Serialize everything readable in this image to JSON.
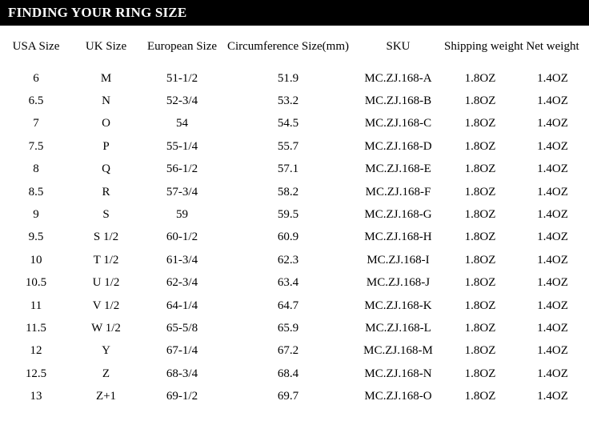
{
  "title_bar": {
    "title": "FINDING YOUR RING SIZE"
  },
  "colors": {
    "title_bar_background": "#000000",
    "title_bar_text": "#ffffff",
    "body_text": "#000000",
    "page_background": "#ffffff"
  },
  "table": {
    "columns": [
      "USA Size",
      "UK Size",
      "European Size",
      "Circumference Size(mm)",
      "SKU",
      "Shipping weight",
      "Net weight"
    ],
    "rows": [
      [
        "6",
        "M",
        "51-1/2",
        "51.9",
        "MC.ZJ.168-A",
        "1.8OZ",
        "1.4OZ"
      ],
      [
        "6.5",
        "N",
        "52-3/4",
        "53.2",
        "MC.ZJ.168-B",
        "1.8OZ",
        "1.4OZ"
      ],
      [
        "7",
        "O",
        "54",
        "54.5",
        "MC.ZJ.168-C",
        "1.8OZ",
        "1.4OZ"
      ],
      [
        "7.5",
        "P",
        "55-1/4",
        "55.7",
        "MC.ZJ.168-D",
        "1.8OZ",
        "1.4OZ"
      ],
      [
        "8",
        "Q",
        "56-1/2",
        "57.1",
        "MC.ZJ.168-E",
        "1.8OZ",
        "1.4OZ"
      ],
      [
        "8.5",
        "R",
        "57-3/4",
        "58.2",
        "MC.ZJ.168-F",
        "1.8OZ",
        "1.4OZ"
      ],
      [
        "9",
        "S",
        "59",
        "59.5",
        "MC.ZJ.168-G",
        "1.8OZ",
        "1.4OZ"
      ],
      [
        "9.5",
        "S 1/2",
        "60-1/2",
        "60.9",
        "MC.ZJ.168-H",
        "1.8OZ",
        "1.4OZ"
      ],
      [
        "10",
        "T 1/2",
        "61-3/4",
        "62.3",
        "MC.ZJ.168-I",
        "1.8OZ",
        "1.4OZ"
      ],
      [
        "10.5",
        "U 1/2",
        "62-3/4",
        "63.4",
        "MC.ZJ.168-J",
        "1.8OZ",
        "1.4OZ"
      ],
      [
        "11",
        "V 1/2",
        "64-1/4",
        "64.7",
        "MC.ZJ.168-K",
        "1.8OZ",
        "1.4OZ"
      ],
      [
        "11.5",
        "W 1/2",
        "65-5/8",
        "65.9",
        "MC.ZJ.168-L",
        "1.8OZ",
        "1.4OZ"
      ],
      [
        "12",
        "Y",
        "67-1/4",
        "67.2",
        "MC.ZJ.168-M",
        "1.8OZ",
        "1.4OZ"
      ],
      [
        "12.5",
        "Z",
        "68-3/4",
        "68.4",
        "MC.ZJ.168-N",
        "1.8OZ",
        "1.4OZ"
      ],
      [
        "13",
        "Z+1",
        "69-1/2",
        "69.7",
        "MC.ZJ.168-O",
        "1.8OZ",
        "1.4OZ"
      ]
    ]
  }
}
